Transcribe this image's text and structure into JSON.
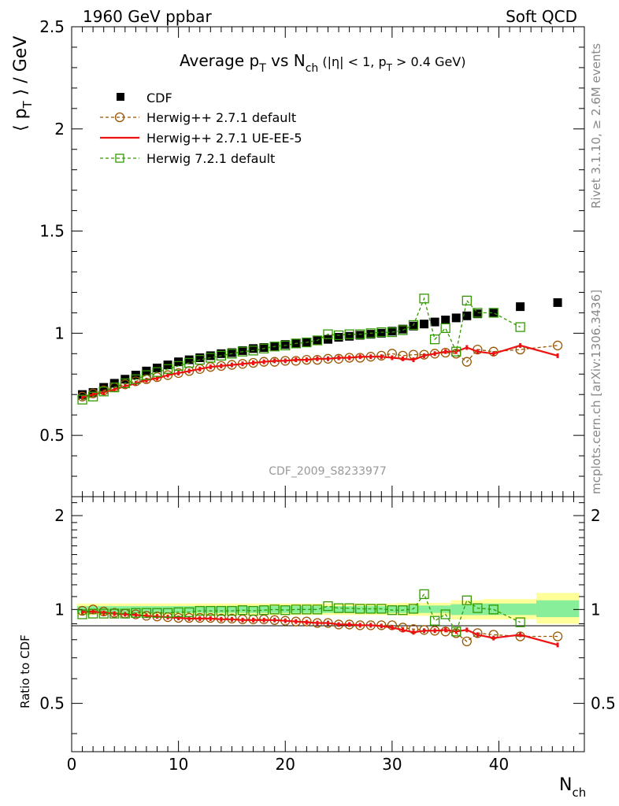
{
  "header": {
    "left": "1960 GeV ppbar",
    "right": "Soft QCD"
  },
  "side": {
    "rivet": "Rivet 3.1.10, ≥ 2.6M events",
    "mcplots": "mcplots.cern.ch [arXiv:1306.3436]"
  },
  "labels": {
    "title_main": "Average p",
    "title_T": "T",
    "title_vs": " vs N",
    "title_ch": "ch",
    "title_cuts1": " (|η| < 1, p",
    "title_cuts_T": "T",
    "title_cuts2": " > 0.4 GeV)",
    "ylabel_a": "⟨ p",
    "ylabel_T": "T",
    "ylabel_b": " ⟩ / GeV",
    "xlabel_N": "N",
    "xlabel_ch": "ch",
    "ratio_ylabel": "Ratio to CDF",
    "analysis": "CDF_2009_S8233977"
  },
  "colors": {
    "data": "#000000",
    "default": "#995500",
    "ue": "#ee1111",
    "h7": "#339900",
    "band_outer": "#ffff99",
    "band_inner": "#88ee99"
  },
  "chart_data": {
    "type": "scatter",
    "xlabel": "Nch",
    "ylabel": "⟨ pT ⟩ / GeV",
    "xlim": [
      0,
      48
    ],
    "ylim": [
      0.2,
      2.5
    ],
    "ratio_ylim": [
      0.35,
      2.3
    ],
    "x_ticks": [
      "0",
      "10",
      "20",
      "30",
      "40"
    ],
    "y_ticks": [
      "0.5",
      "1",
      "1.5",
      "2",
      "2.5"
    ],
    "ratio_ticks": [
      "0.5",
      "1",
      "2"
    ],
    "legend_position": "top-left",
    "series": [
      {
        "name": "CDF",
        "key": "data",
        "x": [
          1,
          2,
          3,
          4,
          5,
          6,
          7,
          8,
          9,
          10,
          11,
          12,
          13,
          14,
          15,
          16,
          17,
          18,
          19,
          20,
          21,
          22,
          23,
          24,
          25,
          26,
          27,
          28,
          29,
          30,
          31,
          32,
          33,
          34,
          35,
          36,
          37,
          38,
          39.5,
          42,
          45.5
        ],
        "y": [
          0.7,
          0.71,
          0.735,
          0.755,
          0.775,
          0.795,
          0.815,
          0.83,
          0.845,
          0.86,
          0.87,
          0.88,
          0.89,
          0.9,
          0.905,
          0.915,
          0.925,
          0.93,
          0.935,
          0.945,
          0.95,
          0.955,
          0.965,
          0.97,
          0.98,
          0.985,
          0.99,
          0.995,
          1.0,
          1.01,
          1.02,
          1.035,
          1.045,
          1.055,
          1.065,
          1.075,
          1.085,
          1.095,
          1.1,
          1.13,
          1.15
        ]
      },
      {
        "name": "Herwig++ 2.7.1 default",
        "key": "default",
        "x": [
          1,
          2,
          3,
          4,
          5,
          6,
          7,
          8,
          9,
          10,
          11,
          12,
          13,
          14,
          15,
          16,
          17,
          18,
          19,
          20,
          21,
          22,
          23,
          24,
          25,
          26,
          27,
          28,
          29,
          30,
          31,
          32,
          33,
          34,
          35,
          36,
          37,
          38,
          39.5,
          42,
          45.5
        ],
        "y": [
          0.69,
          0.705,
          0.72,
          0.735,
          0.75,
          0.765,
          0.775,
          0.785,
          0.795,
          0.805,
          0.815,
          0.825,
          0.835,
          0.84,
          0.845,
          0.85,
          0.855,
          0.86,
          0.86,
          0.865,
          0.865,
          0.87,
          0.87,
          0.875,
          0.875,
          0.88,
          0.88,
          0.885,
          0.89,
          0.9,
          0.89,
          0.895,
          0.895,
          0.9,
          0.905,
          0.9,
          0.86,
          0.92,
          0.91,
          0.92,
          0.94
        ],
        "ratio": [
          0.99,
          1.0,
          0.985,
          0.975,
          0.97,
          0.965,
          0.955,
          0.95,
          0.945,
          0.94,
          0.94,
          0.94,
          0.94,
          0.935,
          0.935,
          0.93,
          0.93,
          0.93,
          0.925,
          0.92,
          0.915,
          0.915,
          0.905,
          0.905,
          0.895,
          0.895,
          0.89,
          0.89,
          0.89,
          0.89,
          0.875,
          0.865,
          0.86,
          0.855,
          0.85,
          0.84,
          0.79,
          0.84,
          0.83,
          0.82,
          0.82
        ]
      },
      {
        "name": "Herwig++ 2.7.1 UE-EE-5",
        "key": "ue",
        "x": [
          1,
          2,
          3,
          4,
          5,
          6,
          7,
          8,
          9,
          10,
          11,
          12,
          13,
          14,
          15,
          16,
          17,
          18,
          19,
          20,
          21,
          22,
          23,
          24,
          25,
          26,
          27,
          28,
          29,
          30,
          31,
          32,
          33,
          34,
          35,
          36,
          37,
          38,
          39.5,
          42,
          45.5
        ],
        "y": [
          0.685,
          0.7,
          0.71,
          0.725,
          0.74,
          0.755,
          0.77,
          0.78,
          0.795,
          0.805,
          0.815,
          0.825,
          0.835,
          0.84,
          0.845,
          0.85,
          0.855,
          0.86,
          0.865,
          0.865,
          0.87,
          0.87,
          0.875,
          0.875,
          0.88,
          0.88,
          0.885,
          0.885,
          0.885,
          0.88,
          0.875,
          0.87,
          0.89,
          0.9,
          0.91,
          0.91,
          0.93,
          0.91,
          0.9,
          0.94,
          0.89
        ],
        "ratio": [
          0.98,
          0.985,
          0.975,
          0.97,
          0.965,
          0.96,
          0.955,
          0.95,
          0.945,
          0.94,
          0.935,
          0.935,
          0.935,
          0.93,
          0.93,
          0.925,
          0.925,
          0.925,
          0.925,
          0.92,
          0.915,
          0.91,
          0.905,
          0.905,
          0.895,
          0.895,
          0.89,
          0.89,
          0.885,
          0.875,
          0.86,
          0.845,
          0.855,
          0.855,
          0.86,
          0.85,
          0.86,
          0.83,
          0.81,
          0.83,
          0.77
        ]
      },
      {
        "name": "Herwig 7.2.1 default",
        "key": "h7",
        "x": [
          1,
          2,
          3,
          4,
          5,
          6,
          7,
          8,
          9,
          10,
          11,
          12,
          13,
          14,
          15,
          16,
          17,
          18,
          19,
          20,
          21,
          22,
          23,
          24,
          25,
          26,
          27,
          28,
          29,
          30,
          31,
          32,
          33,
          34,
          35,
          36,
          37,
          38,
          39.5,
          42
        ],
        "y": [
          0.675,
          0.69,
          0.715,
          0.735,
          0.755,
          0.775,
          0.795,
          0.81,
          0.825,
          0.84,
          0.855,
          0.87,
          0.88,
          0.89,
          0.9,
          0.91,
          0.915,
          0.925,
          0.935,
          0.94,
          0.95,
          0.955,
          0.965,
          0.995,
          0.99,
          0.995,
          0.995,
          1.0,
          1.005,
          1.005,
          1.015,
          1.04,
          1.17,
          0.97,
          1.025,
          0.91,
          1.16,
          1.1,
          1.1,
          1.03
        ],
        "ratio": [
          0.965,
          0.97,
          0.97,
          0.97,
          0.97,
          0.975,
          0.975,
          0.975,
          0.975,
          0.98,
          0.98,
          0.99,
          0.99,
          0.99,
          0.99,
          0.995,
          0.99,
          0.995,
          1.0,
          0.995,
          1.0,
          1.0,
          1.0,
          1.025,
          1.01,
          1.01,
          1.005,
          1.005,
          1.005,
          0.995,
          0.995,
          1.005,
          1.12,
          0.92,
          0.965,
          0.85,
          1.07,
          1.01,
          1.0,
          0.91
        ]
      }
    ]
  }
}
